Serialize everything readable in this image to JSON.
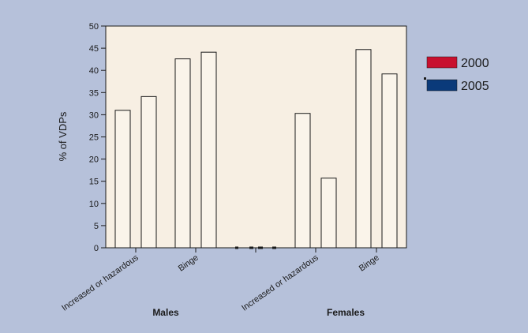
{
  "chart_data": {
    "type": "bar",
    "ylabel": "% of VDPs",
    "ylim": [
      0,
      50
    ],
    "yticks": [
      0,
      5,
      10,
      15,
      20,
      25,
      30,
      35,
      40,
      45,
      50
    ],
    "groups": [
      {
        "name": "Males",
        "categories": [
          "Increased or hazardous",
          "Binge"
        ]
      },
      {
        "name": "Females",
        "categories": [
          "Increased or hazardous",
          "Binge"
        ]
      }
    ],
    "series": [
      {
        "name": "2000",
        "values": [
          31.0,
          42.6,
          30.3,
          44.7
        ]
      },
      {
        "name": "2005",
        "values": [
          34.1,
          44.1,
          15.7,
          39.2
        ]
      }
    ],
    "legend": {
      "position": "right"
    },
    "grid": false
  },
  "colors": {
    "page_background": "#b6c1da",
    "plot_background": "#f7efe3",
    "bar_fill": "#faf4ea",
    "bar_stroke": "#1a1a1a",
    "legend_2000": "#c8102e",
    "legend_2005": "#0a3a7a"
  }
}
